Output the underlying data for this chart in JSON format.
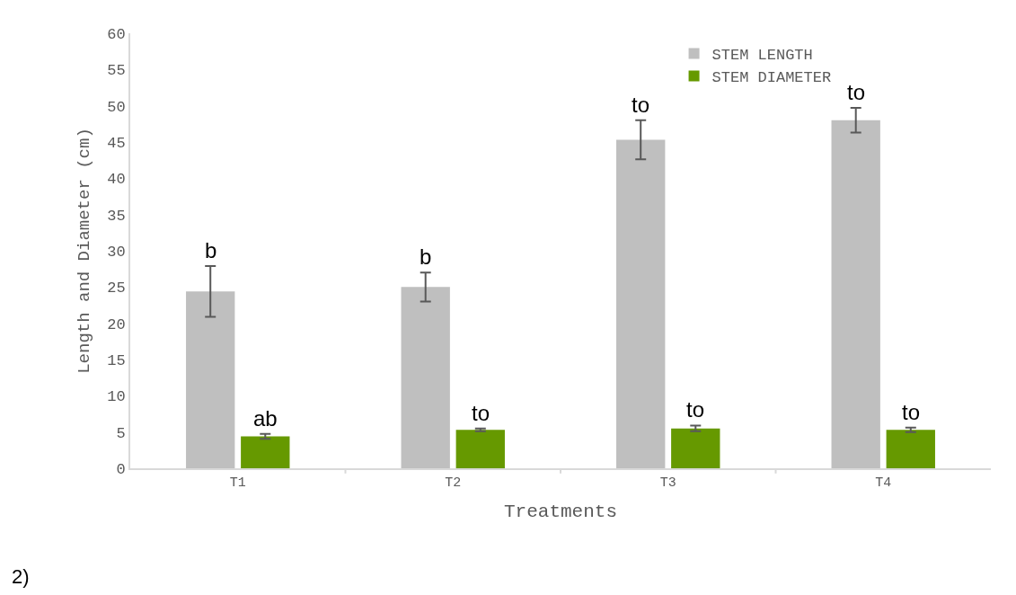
{
  "chart_data": {
    "type": "bar",
    "xlabel": "Treatments",
    "ylabel": "Length and Diameter (cm)",
    "categories": [
      "T1",
      "T2",
      "T3",
      "T4"
    ],
    "series": [
      {
        "name": "STEM LENGTH",
        "color": "#bfbfbf",
        "values": [
          24.4,
          25.0,
          45.3,
          48.0
        ],
        "errors": [
          3.5,
          2.0,
          2.7,
          1.7
        ]
      },
      {
        "name": "STEM DIAMETER",
        "color": "#669900",
        "values": [
          4.4,
          5.3,
          5.5,
          5.3
        ],
        "errors": [
          0.35,
          0.2,
          0.4,
          0.3
        ]
      }
    ],
    "ylim": [
      0,
      60
    ],
    "yticks": [
      0,
      5,
      10,
      15,
      20,
      25,
      30,
      35,
      40,
      45,
      50,
      55,
      60
    ],
    "annotations": [
      {
        "text": "b",
        "x": "T1",
        "y": 24.4
      },
      {
        "text": "ab",
        "x": "T1",
        "y": 4.4
      },
      {
        "text": "b",
        "x": "T2",
        "y": 25.0
      },
      {
        "text": "to",
        "x": "T2",
        "y": 5.3
      },
      {
        "text": "to",
        "x": "T3",
        "y": 45.3
      },
      {
        "text": "to",
        "x": "T3",
        "y": 5.5
      },
      {
        "text": "to",
        "x": "T4",
        "y": 48.0
      },
      {
        "text": "to",
        "x": "T4",
        "y": 5.3
      },
      "2)"
    ],
    "grid": false,
    "legend": "top right"
  }
}
